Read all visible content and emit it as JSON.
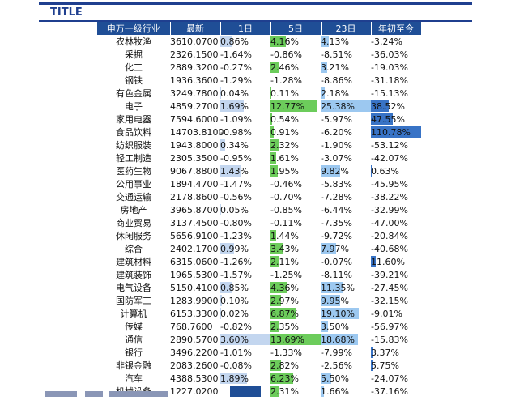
{
  "title": "TITLE",
  "headers": [
    "申万一级行业",
    "最新",
    "1日",
    "5日",
    "23日",
    "年初至今"
  ],
  "colors": {
    "header_bg": "#1f4e96",
    "bar_1d": "#c3d6ef",
    "bar_5d": "#6ccc5b",
    "bar_23d": "#9cc8f0",
    "bar_ytd": "#3873c6"
  },
  "rows": [
    {
      "name": "农林牧渔",
      "price": "3610.0700",
      "d1": "0.86%",
      "d5": "4.16%",
      "d23": "4.13%",
      "ytd": "-3.24%"
    },
    {
      "name": "采掘",
      "price": "2326.1500",
      "d1": "-1.64%",
      "d5": "-0.86%",
      "d23": "-8.51%",
      "ytd": "-36.03%"
    },
    {
      "name": "化工",
      "price": "2889.3200",
      "d1": "-0.27%",
      "d5": "2.46%",
      "d23": "3.21%",
      "ytd": "-19.03%"
    },
    {
      "name": "钢铁",
      "price": "1936.3600",
      "d1": "-1.29%",
      "d5": "-1.28%",
      "d23": "-8.86%",
      "ytd": "-31.18%"
    },
    {
      "name": "有色金属",
      "price": "3249.7800",
      "d1": "0.04%",
      "d5": "0.11%",
      "d23": "2.18%",
      "ytd": "-15.13%"
    },
    {
      "name": "电子",
      "price": "4859.2700",
      "d1": "1.69%",
      "d5": "12.77%",
      "d23": "25.38%",
      "ytd": "38.52%"
    },
    {
      "name": "家用电器",
      "price": "7594.6000",
      "d1": "-1.09%",
      "d5": "0.54%",
      "d23": "-5.97%",
      "ytd": "47.55%"
    },
    {
      "name": "食品饮料",
      "price": "14703.8100",
      "d1": "-0.98%",
      "d5": "0.91%",
      "d23": "-6.20%",
      "ytd": "110.78%"
    },
    {
      "name": "纺织服装",
      "price": "1943.8000",
      "d1": "0.34%",
      "d5": "2.32%",
      "d23": "-1.90%",
      "ytd": "-53.12%"
    },
    {
      "name": "轻工制造",
      "price": "2305.3500",
      "d1": "-0.95%",
      "d5": "1.61%",
      "d23": "-3.07%",
      "ytd": "-42.07%"
    },
    {
      "name": "医药生物",
      "price": "9067.8800",
      "d1": "1.43%",
      "d5": "1.95%",
      "d23": "9.82%",
      "ytd": "0.63%"
    },
    {
      "name": "公用事业",
      "price": "1894.4700",
      "d1": "-1.47%",
      "d5": "-0.46%",
      "d23": "-5.83%",
      "ytd": "-45.95%"
    },
    {
      "name": "交通运输",
      "price": "2178.8600",
      "d1": "-0.56%",
      "d5": "-0.70%",
      "d23": "-7.28%",
      "ytd": "-38.22%"
    },
    {
      "name": "房地产",
      "price": "3965.8700",
      "d1": "0.05%",
      "d5": "-0.85%",
      "d23": "-6.44%",
      "ytd": "-32.99%"
    },
    {
      "name": "商业贸易",
      "price": "3137.4500",
      "d1": "-0.80%",
      "d5": "-0.11%",
      "d23": "-7.35%",
      "ytd": "-47.00%"
    },
    {
      "name": "休闲服务",
      "price": "5656.9100",
      "d1": "-1.23%",
      "d5": "1.44%",
      "d23": "-9.72%",
      "ytd": "-20.84%"
    },
    {
      "name": "综合",
      "price": "2402.1700",
      "d1": "0.99%",
      "d5": "3.43%",
      "d23": "7.97%",
      "ytd": "-40.68%"
    },
    {
      "name": "建筑材料",
      "price": "6315.0600",
      "d1": "-1.26%",
      "d5": "2.11%",
      "d23": "-0.07%",
      "ytd": "11.60%"
    },
    {
      "name": "建筑装饰",
      "price": "1965.5300",
      "d1": "-1.57%",
      "d5": "-1.25%",
      "d23": "-8.11%",
      "ytd": "-39.21%"
    },
    {
      "name": "电气设备",
      "price": "5150.4100",
      "d1": "0.85%",
      "d5": "4.36%",
      "d23": "11.35%",
      "ytd": "-27.45%"
    },
    {
      "name": "国防军工",
      "price": "1283.9900",
      "d1": "0.10%",
      "d5": "2.97%",
      "d23": "9.95%",
      "ytd": "-32.15%"
    },
    {
      "name": "计算机",
      "price": "6153.3300",
      "d1": "0.02%",
      "d5": "6.87%",
      "d23": "19.10%",
      "ytd": "-9.01%"
    },
    {
      "name": "传媒",
      "price": "768.7600",
      "d1": "-0.82%",
      "d5": "2.35%",
      "d23": "3.50%",
      "ytd": "-56.97%"
    },
    {
      "name": "通信",
      "price": "2890.5700",
      "d1": "3.60%",
      "d5": "13.69%",
      "d23": "18.68%",
      "ytd": "-15.83%"
    },
    {
      "name": "银行",
      "price": "3496.2200",
      "d1": "-1.01%",
      "d5": "-1.33%",
      "d23": "-7.99%",
      "ytd": "3.37%"
    },
    {
      "name": "非银金融",
      "price": "2083.2600",
      "d1": "-0.08%",
      "d5": "2.82%",
      "d23": "-2.56%",
      "ytd": "5.75%"
    },
    {
      "name": "汽车",
      "price": "4388.5300",
      "d1": "1.89%",
      "d5": "6.23%",
      "d23": "5.50%",
      "ytd": "-24.07%"
    },
    {
      "name": "机械设备",
      "price": "1227.0200",
      "d1": "",
      "d5": "2.31%",
      "d23": "1.66%",
      "ytd": "-37.16%"
    }
  ]
}
